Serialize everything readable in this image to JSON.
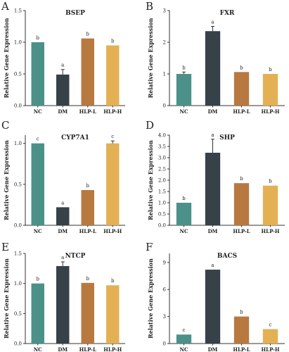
{
  "chart_data": [
    {
      "panel_label": "A",
      "type": "bar",
      "title": "BSEP",
      "ylabel": "Relative Gene Expression",
      "categories": [
        "NC",
        "DM",
        "HLP-L",
        "HLP-H"
      ],
      "values": [
        1.0,
        0.49,
        1.06,
        0.95
      ],
      "errors": [
        0.0,
        0.08,
        0.0,
        0.0
      ],
      "sig_labels": [
        "b",
        "a",
        "b",
        "b"
      ],
      "ylim": [
        0,
        1.5
      ],
      "yticks": [
        "0.0",
        "0.5",
        "1.0",
        "1.5"
      ],
      "ytick_values": [
        0,
        0.5,
        1.0,
        1.5
      ],
      "colors": [
        "#4b9189",
        "#364148",
        "#b87940",
        "#e3b054"
      ]
    },
    {
      "panel_label": "B",
      "type": "bar",
      "title": "FXR",
      "ylabel": "Relative Gene Expression",
      "categories": [
        "NC",
        "DM",
        "HLP-L",
        "HLP-H"
      ],
      "values": [
        1.0,
        2.35,
        1.06,
        1.0
      ],
      "errors": [
        0.06,
        0.15,
        0.0,
        0.0
      ],
      "sig_labels": [
        "b",
        "a",
        "b",
        "b"
      ],
      "ylim": [
        0,
        3
      ],
      "yticks": [
        "0",
        "1",
        "2",
        "3"
      ],
      "ytick_values": [
        0,
        1,
        2,
        3
      ],
      "colors": [
        "#4b9189",
        "#364148",
        "#b87940",
        "#e3b054"
      ]
    },
    {
      "panel_label": "C",
      "type": "bar",
      "title": "CYP7A1",
      "ylabel": "Relative Gene Expression",
      "categories": [
        "NC",
        "DM",
        "HLP-L",
        "HLP-H"
      ],
      "values": [
        1.0,
        0.22,
        0.43,
        1.0
      ],
      "errors": [
        0.0,
        0.0,
        0.0,
        0.03
      ],
      "sig_labels": [
        "c",
        "a",
        "b",
        "c"
      ],
      "ylim": [
        0,
        1.1
      ],
      "yticks": [
        "0.0",
        "0.5",
        "1.0"
      ],
      "ytick_values": [
        0,
        0.5,
        1.0
      ],
      "colors": [
        "#4b9189",
        "#364148",
        "#b87940",
        "#e3b054"
      ]
    },
    {
      "panel_label": "D",
      "type": "bar",
      "title": "SHP",
      "ylabel": "Relative Gene Expression",
      "categories": [
        "NC",
        "DM",
        "HLP-L",
        "HLP-H"
      ],
      "values": [
        1.0,
        3.22,
        1.87,
        1.76
      ],
      "errors": [
        0.0,
        0.6,
        0.0,
        0.0
      ],
      "sig_labels": [
        "b",
        "a",
        "b",
        "b"
      ],
      "ylim": [
        0,
        4.0
      ],
      "yticks": [
        "0.0",
        "0.5",
        "1.0",
        "1.5",
        "2.0",
        "2.5",
        "3.0",
        "3.5",
        "4.0"
      ],
      "ytick_values": [
        0,
        0.5,
        1.0,
        1.5,
        2.0,
        2.5,
        3.0,
        3.5,
        4.0
      ],
      "colors": [
        "#4b9189",
        "#364148",
        "#b87940",
        "#e3b054"
      ]
    },
    {
      "panel_label": "E",
      "type": "bar",
      "title": "NTCP",
      "ylabel": "Relative Gene Expression",
      "categories": [
        "NC",
        "DM",
        "HLP-L",
        "HLP-H"
      ],
      "values": [
        1.0,
        1.29,
        1.01,
        0.97
      ],
      "errors": [
        0.0,
        0.07,
        0.0,
        0.0
      ],
      "sig_labels": [
        "b",
        "a",
        "b",
        "b"
      ],
      "ylim": [
        0,
        1.5
      ],
      "yticks": [
        "0.0",
        "0.5",
        "1.0",
        "1.5"
      ],
      "ytick_values": [
        0,
        0.5,
        1.0,
        1.5
      ],
      "colors": [
        "#4b9189",
        "#364148",
        "#b87940",
        "#e3b054"
      ]
    },
    {
      "panel_label": "F",
      "type": "bar",
      "title": "BACS",
      "ylabel": "Relative Gene Expression",
      "categories": [
        "NC",
        "DM",
        "HLP-L",
        "HLP-H"
      ],
      "values": [
        1.0,
        8.2,
        3.0,
        1.6
      ],
      "errors": [
        0.0,
        0.0,
        0.0,
        0.0
      ],
      "sig_labels": [
        "c",
        "a",
        "b",
        "c"
      ],
      "ylim": [
        0,
        10
      ],
      "yticks": [
        "0",
        "3",
        "6",
        "9"
      ],
      "ytick_values": [
        0,
        3,
        6,
        9
      ],
      "colors": [
        "#4b9189",
        "#364148",
        "#b87940",
        "#e3b054"
      ]
    }
  ]
}
